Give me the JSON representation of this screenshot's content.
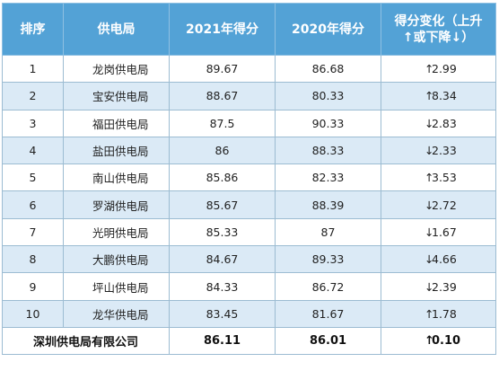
{
  "table": {
    "headers": {
      "rank": "排序",
      "bureau": "供电局",
      "score_2021": "2021年得分",
      "score_2020": "2020年得分",
      "change_line1": "得分变化（上升",
      "change_line2": "↑或下降↓）"
    },
    "rows": [
      {
        "rank": "1",
        "bureau": "龙岗供电局",
        "score_2021": "89.67",
        "score_2020": "86.68",
        "arrow": "↑",
        "change": "2.99"
      },
      {
        "rank": "2",
        "bureau": "宝安供电局",
        "score_2021": "88.67",
        "score_2020": "80.33",
        "arrow": "↑",
        "change": "8.34"
      },
      {
        "rank": "3",
        "bureau": "福田供电局",
        "score_2021": "87.5",
        "score_2020": "90.33",
        "arrow": "↓",
        "change": "2.83"
      },
      {
        "rank": "4",
        "bureau": "盐田供电局",
        "score_2021": "86",
        "score_2020": "88.33",
        "arrow": "↓",
        "change": "2.33"
      },
      {
        "rank": "5",
        "bureau": "南山供电局",
        "score_2021": "85.86",
        "score_2020": "82.33",
        "arrow": "↑",
        "change": "3.53"
      },
      {
        "rank": "6",
        "bureau": "罗湖供电局",
        "score_2021": "85.67",
        "score_2020": "88.39",
        "arrow": "↓",
        "change": "2.72"
      },
      {
        "rank": "7",
        "bureau": "光明供电局",
        "score_2021": "85.33",
        "score_2020": "87",
        "arrow": "↓",
        "change": "1.67"
      },
      {
        "rank": "8",
        "bureau": "大鹏供电局",
        "score_2021": "84.67",
        "score_2020": "89.33",
        "arrow": "↓",
        "change": "4.66"
      },
      {
        "rank": "9",
        "bureau": "坪山供电局",
        "score_2021": "84.33",
        "score_2020": "86.72",
        "arrow": "↓",
        "change": "2.39"
      },
      {
        "rank": "10",
        "bureau": "龙华供电局",
        "score_2021": "83.45",
        "score_2020": "81.67",
        "arrow": "↑",
        "change": "1.78"
      }
    ],
    "total": {
      "bureau": "深圳供电局有限公司",
      "score_2021": "86.11",
      "score_2020": "86.01",
      "arrow": "↑",
      "change": "0.10"
    }
  },
  "colors": {
    "header_bg": "#53a2d6",
    "alt_row_bg": "#dbeaf6",
    "border": "#9cbcd2"
  }
}
